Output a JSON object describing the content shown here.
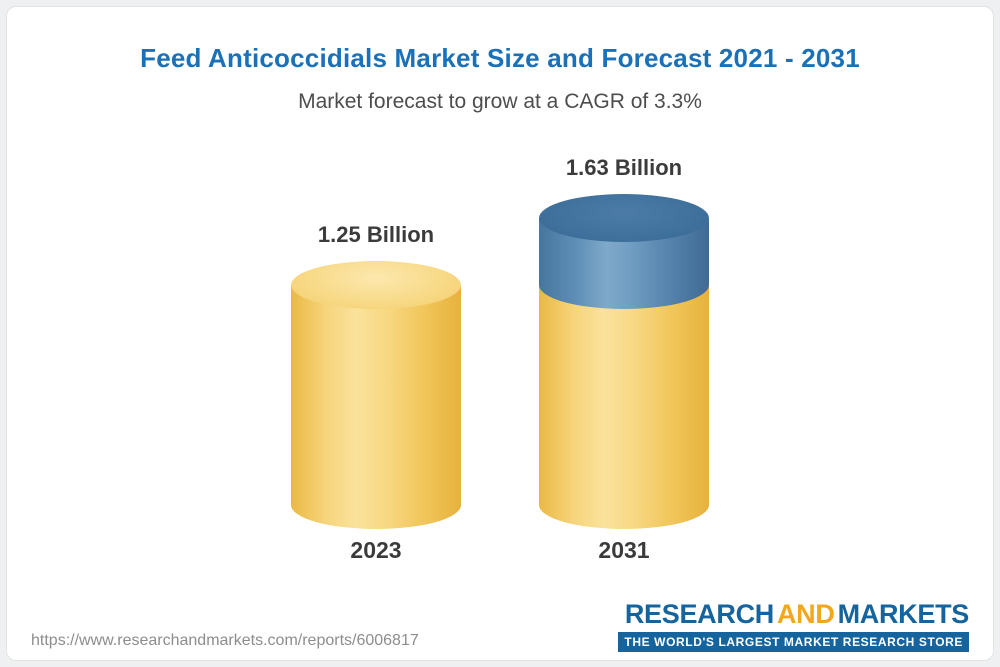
{
  "page": {
    "title": "Feed Anticoccidials Market Size and Forecast 2021 - 2031",
    "subtitle": "Market forecast to grow at a CAGR of 3.3%"
  },
  "chart_data": {
    "type": "bar",
    "chart_style": "3d-cylinder",
    "title": "Feed Anticoccidials Market Size and Forecast 2021 - 2031",
    "subtitle": "Market forecast to grow at a CAGR of 3.3%",
    "cagr": "3.3%",
    "categories": [
      "2023",
      "2031"
    ],
    "values": [
      1.25,
      1.63
    ],
    "value_labels": [
      "1.25 Billion",
      "1.63 Billion"
    ],
    "unit": "Billion",
    "ylim": [
      0,
      1.8
    ],
    "grid": false,
    "legend": "none",
    "bar_colors": {
      "base": "#f3c95f",
      "growth_cap": "#4c7ea9"
    }
  },
  "footer": {
    "url": "https://www.researchandmarkets.com/reports/6006817",
    "logo": {
      "word1": "RESEARCH",
      "word2": "AND",
      "word3": "MARKETS",
      "tagline": "THE WORLD'S LARGEST MARKET RESEARCH STORE"
    }
  },
  "colors": {
    "title_blue": "#1a71b8",
    "text_dark": "#3b3b3b",
    "url_gray": "#8d8d8d",
    "logo_blue": "#15649e",
    "logo_gold": "#f2a71c",
    "cylinder_gold": "#f3c95f",
    "cylinder_blue": "#4c7ea9",
    "background": "#ffffff"
  }
}
